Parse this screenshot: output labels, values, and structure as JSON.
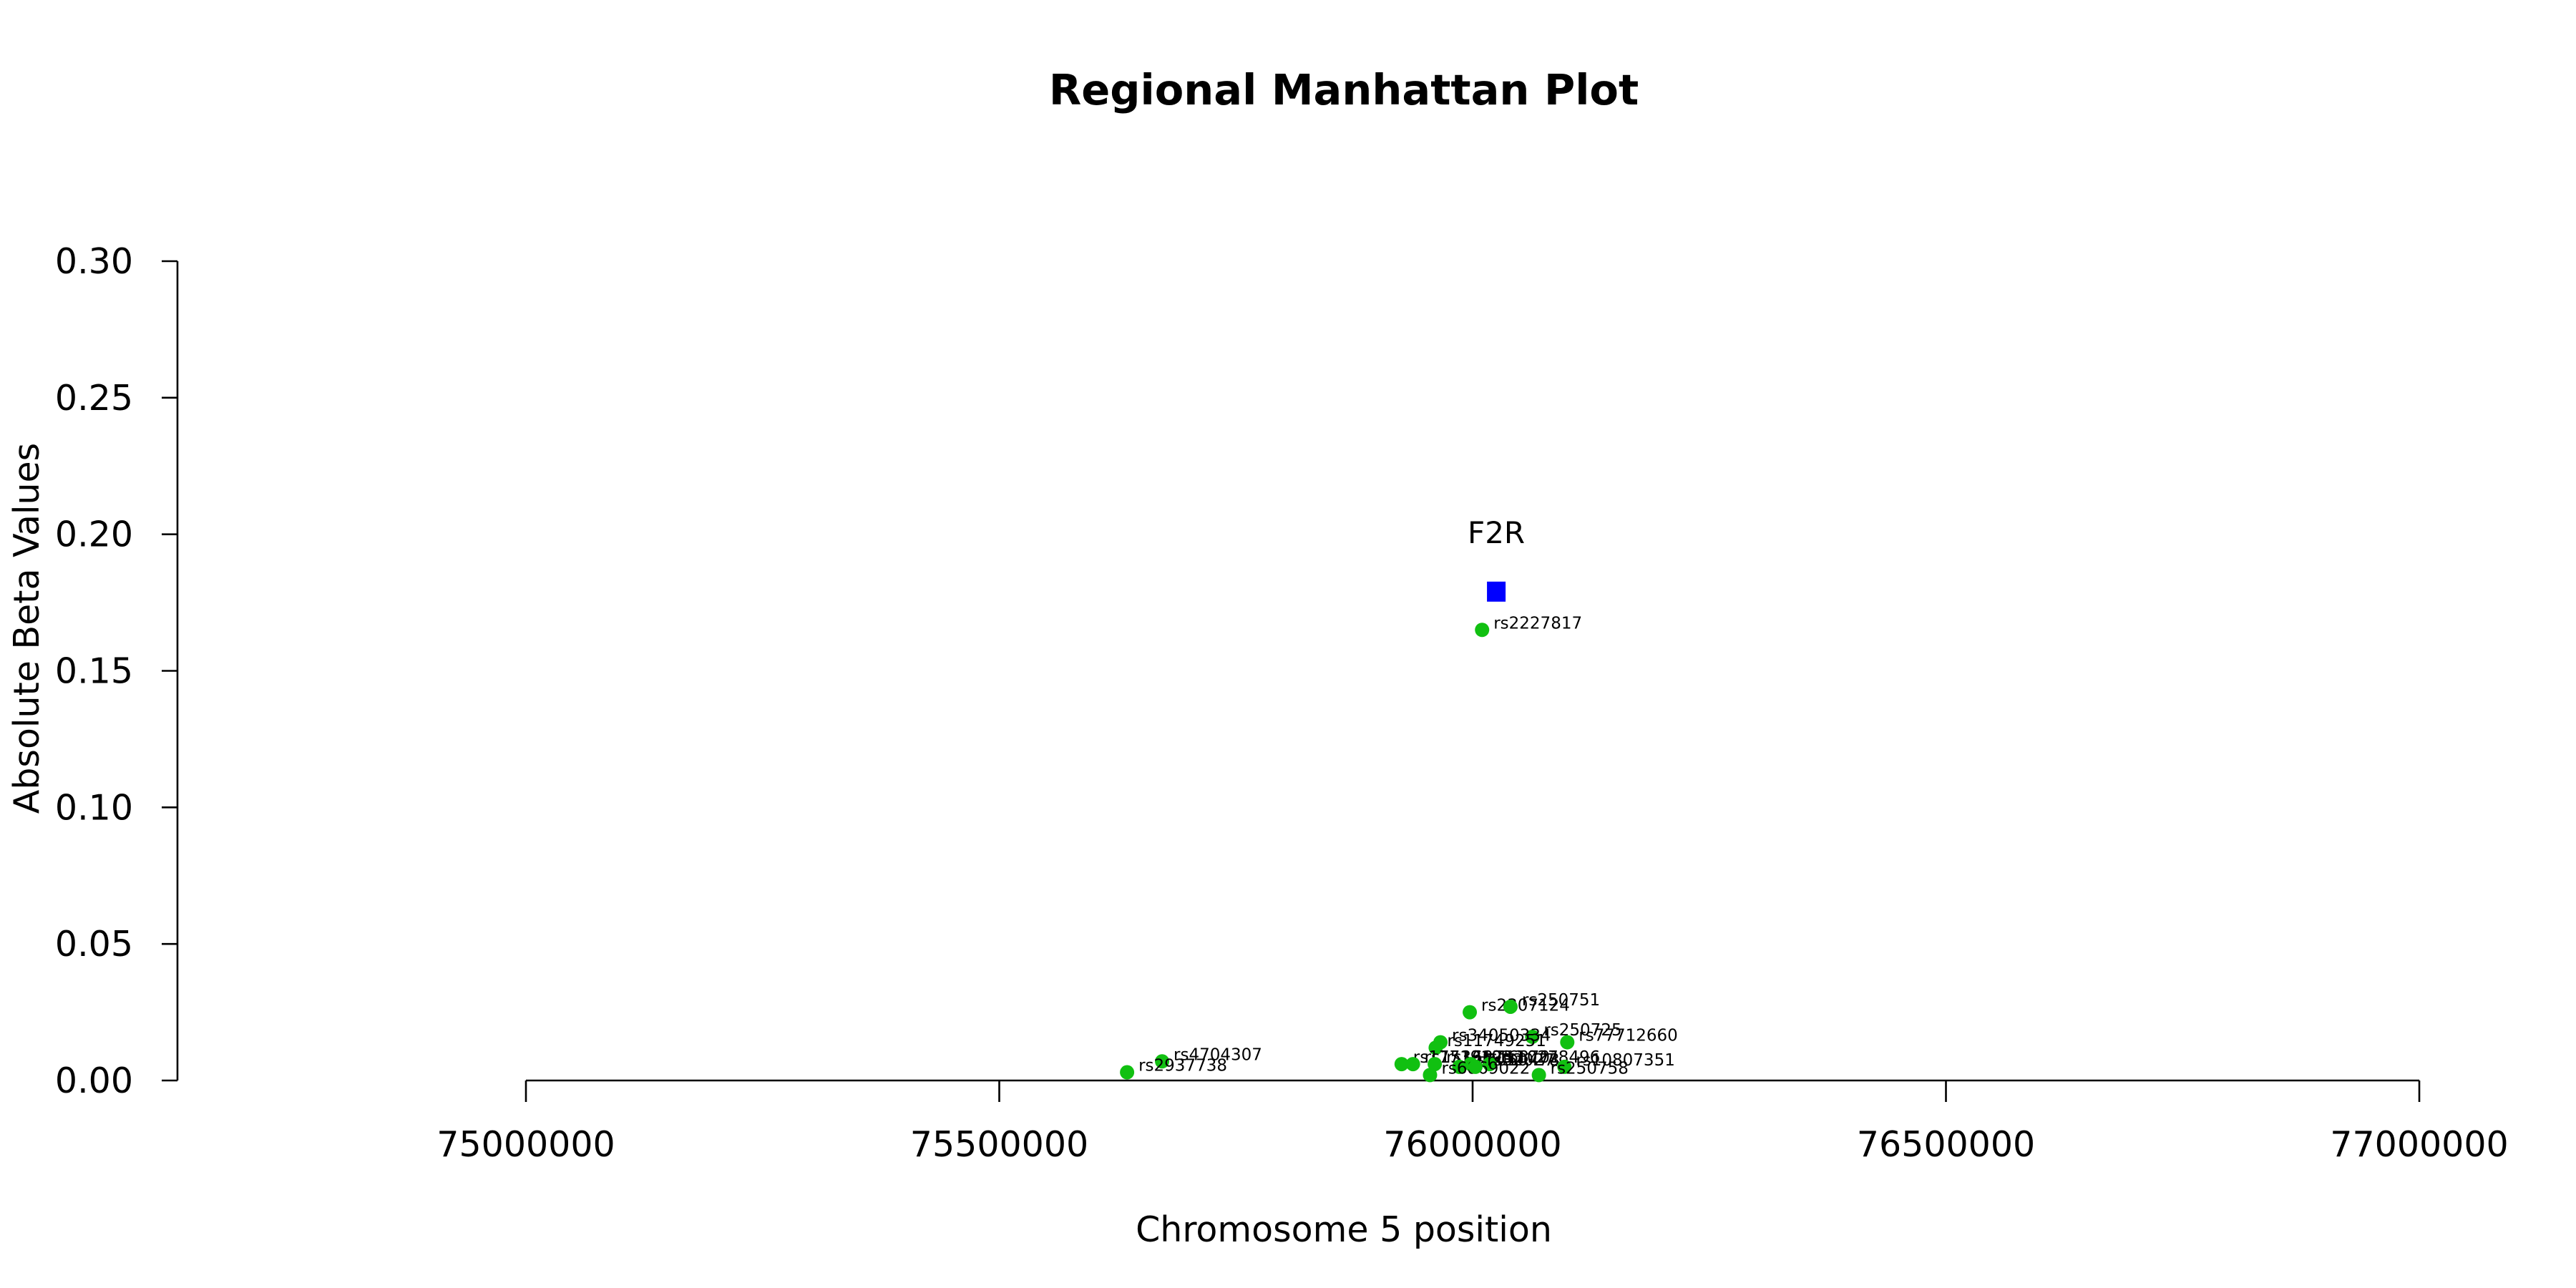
{
  "chart_data": {
    "type": "scatter",
    "title": "Regional Manhattan Plot",
    "xlabel": "Chromosome 5 position",
    "ylabel": "Absolute Beta Values",
    "xlim": [
      75000000,
      77000000
    ],
    "ylim": [
      0.0,
      0.3
    ],
    "x_ticks": [
      75000000,
      75500000,
      76000000,
      76500000,
      77000000
    ],
    "x_tick_labels": [
      "75000000",
      "75500000",
      "76000000",
      "76500000",
      "77000000"
    ],
    "y_ticks": [
      0.0,
      0.05,
      0.1,
      0.15,
      0.2,
      0.25,
      0.3
    ],
    "y_tick_labels": [
      "0.00",
      "0.05",
      "0.10",
      "0.15",
      "0.20",
      "0.25",
      "0.30"
    ],
    "grid": false,
    "colors": {
      "snp": "#11C011",
      "gene": "#0000FF",
      "axis": "#000000"
    },
    "gene_marker": {
      "name": "F2R",
      "x": 76025000,
      "y": 0.179
    },
    "series": [
      {
        "name": "SNPs",
        "points": [
          {
            "label": "rs2227817",
            "x": 76010000,
            "y": 0.165
          },
          {
            "label": "rs2307124",
            "x": 75997000,
            "y": 0.025
          },
          {
            "label": "rs250751",
            "x": 76040000,
            "y": 0.027
          },
          {
            "label": "rs250725",
            "x": 76063000,
            "y": 0.016
          },
          {
            "label": "rs77712660",
            "x": 76100000,
            "y": 0.014
          },
          {
            "label": "rs34050334",
            "x": 75966000,
            "y": 0.014
          },
          {
            "label": "rs11749251",
            "x": 75961000,
            "y": 0.012
          },
          {
            "label": "rs4704307",
            "x": 75672000,
            "y": 0.007
          },
          {
            "label": "rs2937738",
            "x": 75635000,
            "y": 0.003
          },
          {
            "label": "rs17719103",
            "x": 75925000,
            "y": 0.006
          },
          {
            "label": "rs153312",
            "x": 75937000,
            "y": 0.006
          },
          {
            "label": "rs168753",
            "x": 75960000,
            "y": 0.006
          },
          {
            "label": "rs2010478",
            "x": 75986000,
            "y": 0.005
          },
          {
            "label": "rs168701",
            "x": 75998000,
            "y": 0.006
          },
          {
            "label": "rs10278496",
            "x": 76018000,
            "y": 0.006
          },
          {
            "label": "rs6869022",
            "x": 75955000,
            "y": 0.002
          },
          {
            "label": "rs32027",
            "x": 76003000,
            "y": 0.005
          },
          {
            "label": "rs10807351",
            "x": 76097000,
            "y": 0.005
          },
          {
            "label": "rs250758",
            "x": 76070000,
            "y": 0.002
          }
        ]
      }
    ]
  }
}
